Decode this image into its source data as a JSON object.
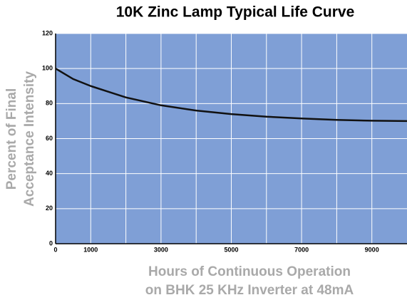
{
  "chart_data": {
    "type": "line",
    "title": "10K Zinc Lamp Typical Life Curve",
    "y_label": [
      "Percent of Final",
      "Acceptance Intensity"
    ],
    "x_label": [
      "Hours of Continuous Operation",
      "on BHK 25 KHz Inverter at 48mA"
    ],
    "x": [
      0,
      500,
      1000,
      2000,
      3000,
      4000,
      5000,
      6000,
      7000,
      8000,
      9000,
      10000
    ],
    "series": [
      {
        "name": "Intensity",
        "color": "#111111",
        "values": [
          100,
          94,
          90,
          83.5,
          79,
          76,
          74,
          72.5,
          71.5,
          70.7,
          70.2,
          70
        ]
      }
    ],
    "xlim": [
      0,
      10000
    ],
    "xticks": [
      0,
      1000,
      3000,
      5000,
      7000,
      9000
    ],
    "minor_xticks": [
      2000,
      4000,
      6000,
      8000
    ],
    "ylim": [
      0,
      120
    ],
    "yticks": [
      0,
      20,
      40,
      60,
      80,
      100,
      120
    ],
    "grid": true,
    "plot_color": "#7f9fd6"
  }
}
